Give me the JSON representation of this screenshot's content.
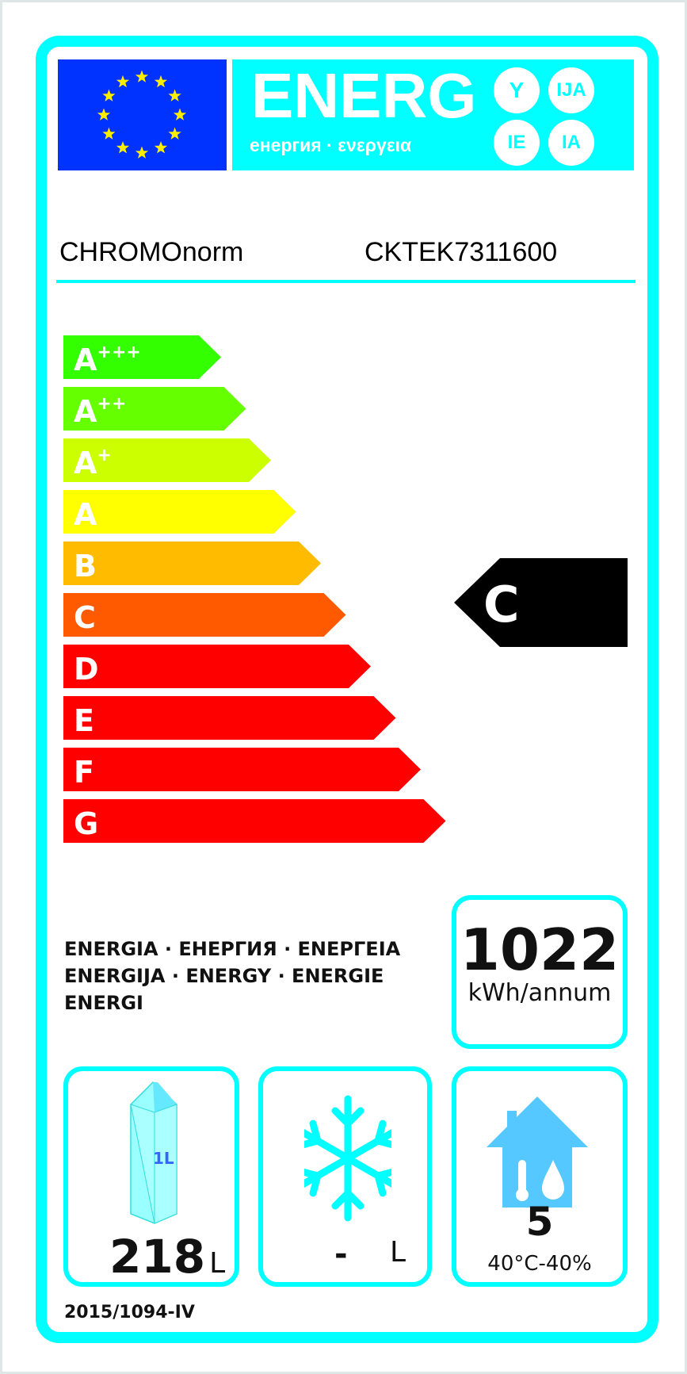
{
  "header": {
    "energy_title": "ENERG",
    "energy_subtitle": "енергия · ενεργεια",
    "suffixes": [
      "Y",
      "IJA",
      "IE",
      "IA"
    ],
    "flag_icon": "eu-flag-icon"
  },
  "product": {
    "supplier": "CHROMOnorm",
    "model": "CKTEK7311600"
  },
  "scale": {
    "classes": [
      {
        "label": "A",
        "sup": "+++",
        "color": "#33ff00"
      },
      {
        "label": "A",
        "sup": "++",
        "color": "#66ff00"
      },
      {
        "label": "A",
        "sup": "+",
        "color": "#ccff00"
      },
      {
        "label": "A",
        "sup": "",
        "color": "#ffff00"
      },
      {
        "label": "B",
        "sup": "",
        "color": "#ffbb00"
      },
      {
        "label": "C",
        "sup": "",
        "color": "#ff5a00"
      },
      {
        "label": "D",
        "sup": "",
        "color": "#ff0000"
      },
      {
        "label": "E",
        "sup": "",
        "color": "#ff0000"
      },
      {
        "label": "F",
        "sup": "",
        "color": "#ff0000"
      },
      {
        "label": "G",
        "sup": "",
        "color": "#ff0000"
      }
    ],
    "rating": "C"
  },
  "energy": {
    "lines": [
      "ENERGIA · ЕНЕРГИЯ · ЕΝΕΡΓΕΙΑ",
      "ENERGIJA · ENERGY · ENERGIE",
      "ENERGI"
    ],
    "value": "1022",
    "unit": "kWh/annum"
  },
  "fresh": {
    "icon": "milk-carton-icon",
    "carton_label": "1L",
    "value": "218",
    "unit": "L"
  },
  "frozen": {
    "icon": "snowflake-icon",
    "value": "-",
    "unit": "L"
  },
  "climate": {
    "icon": "house-climate-icon",
    "value": "5",
    "condition": "40°C-40%"
  },
  "regulation": "2015/1094-IV",
  "colors": {
    "accent": "#00ffff",
    "flag": "#0033ff",
    "star": "#ffee00"
  }
}
